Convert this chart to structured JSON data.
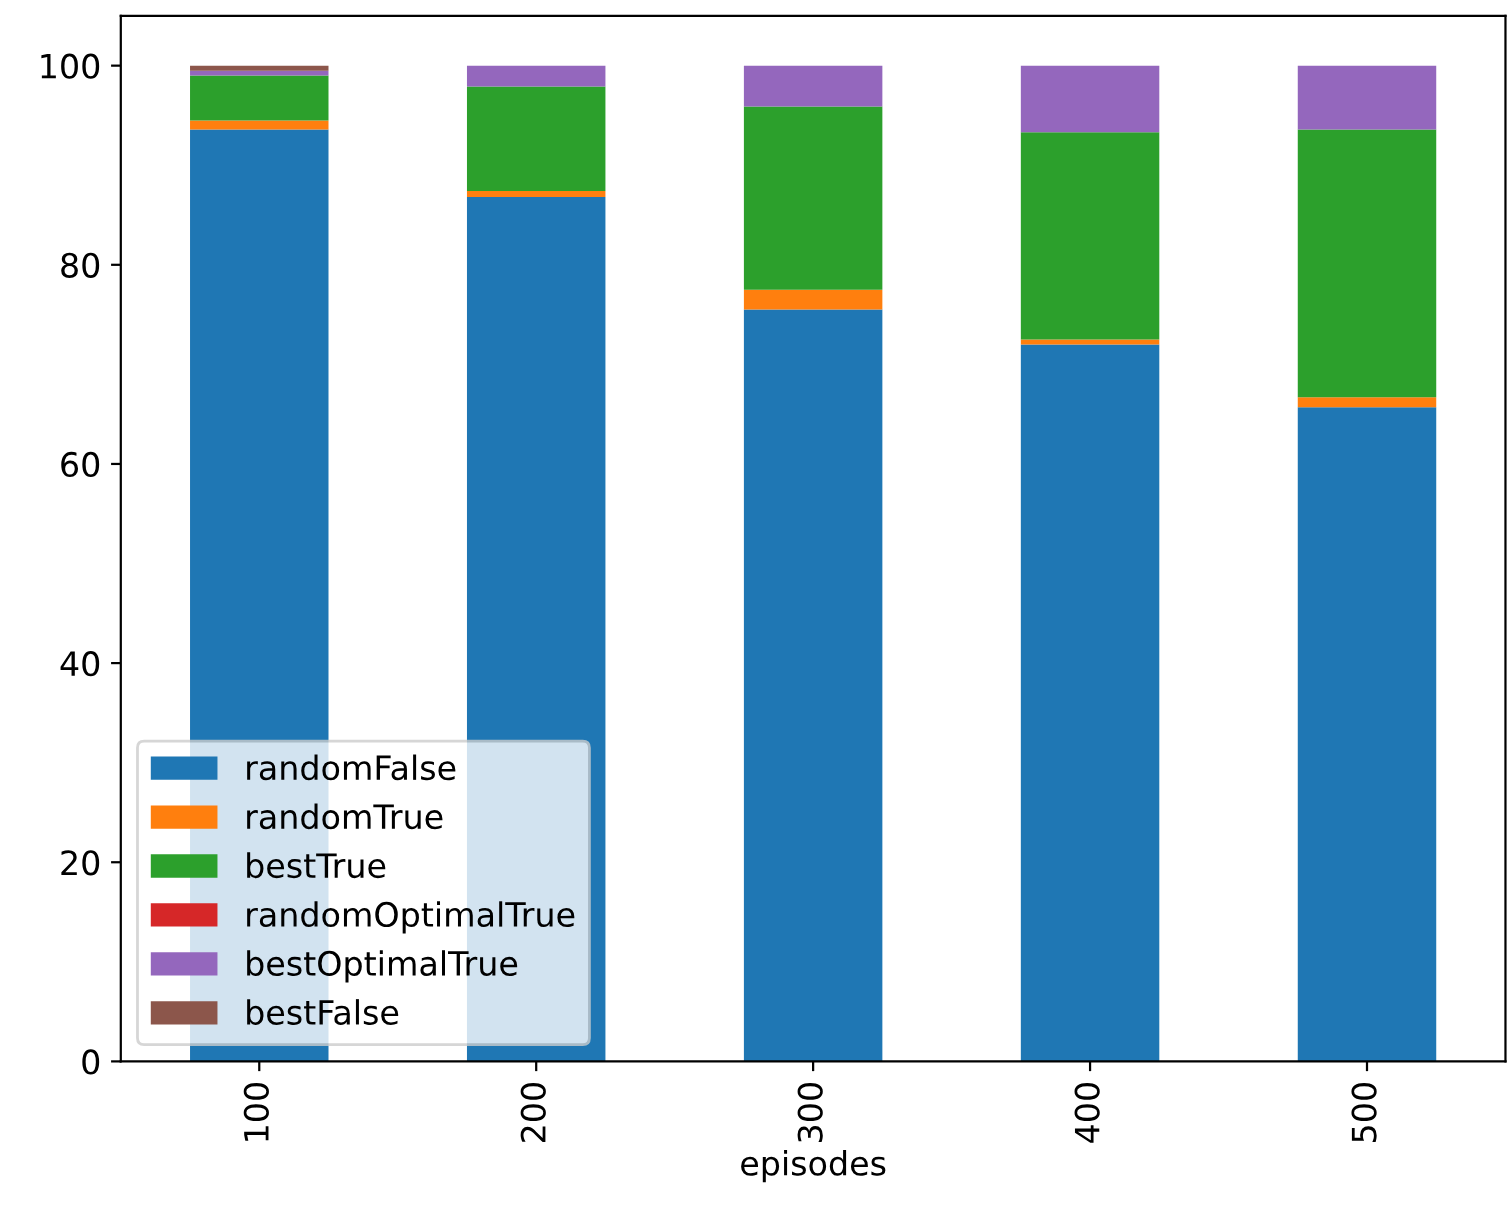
{
  "chart_data": {
    "type": "bar",
    "stacked": true,
    "xlabel": "episodes",
    "categories": [
      "100",
      "200",
      "300",
      "400",
      "500"
    ],
    "series": [
      {
        "name": "randomFalse",
        "color": "#1f77b4",
        "values": [
          93.6,
          86.8,
          75.5,
          72.0,
          65.7
        ]
      },
      {
        "name": "randomTrue",
        "color": "#ff7f0e",
        "values": [
          0.9,
          0.6,
          2.0,
          0.5,
          1.0
        ]
      },
      {
        "name": "bestTrue",
        "color": "#2ca02c",
        "values": [
          4.5,
          10.5,
          18.4,
          20.8,
          26.9
        ]
      },
      {
        "name": "randomOptimalTrue",
        "color": "#d62728",
        "values": [
          0,
          0,
          0,
          0,
          0
        ]
      },
      {
        "name": "bestOptimalTrue",
        "color": "#9467bd",
        "values": [
          0.5,
          2.1,
          4.1,
          6.7,
          6.4
        ]
      },
      {
        "name": "bestFalse",
        "color": "#8c564b",
        "values": [
          0.5,
          0,
          0,
          0,
          0
        ]
      }
    ],
    "ylim": [
      0,
      105
    ],
    "yticks": [
      0,
      20,
      40,
      60,
      80,
      100
    ],
    "grid": false,
    "legend": "bottom left"
  }
}
